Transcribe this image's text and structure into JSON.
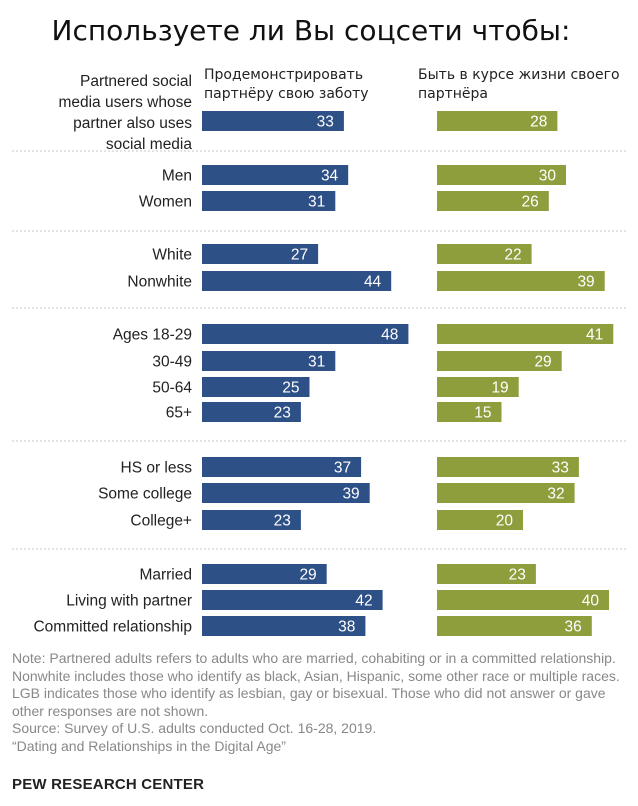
{
  "title": "Используете ли Вы соцсети чтобы:",
  "chart_data": {
    "type": "bar",
    "orientation": "horizontal",
    "series": [
      {
        "name": "Продемонстрировать партнёру свою заботу",
        "color": "#2d5086",
        "values": [
          33,
          34,
          31,
          27,
          44,
          48,
          31,
          25,
          23,
          37,
          39,
          23,
          29,
          42,
          38
        ]
      },
      {
        "name": "Быть в курсе жизни своего партнёра",
        "color": "#8f9e3d",
        "values": [
          28,
          30,
          26,
          22,
          39,
          41,
          29,
          19,
          15,
          33,
          32,
          20,
          23,
          40,
          36
        ]
      }
    ],
    "groups": [
      {
        "categories": [
          "Partnered social media users whose partner also uses social media"
        ]
      },
      {
        "categories": [
          "Men",
          "Women"
        ]
      },
      {
        "categories": [
          "White",
          "Nonwhite"
        ]
      },
      {
        "categories": [
          "Ages 18-29",
          "30-49",
          "50-64",
          "65+"
        ]
      },
      {
        "categories": [
          "HS or less",
          "Some college",
          "College+"
        ]
      },
      {
        "categories": [
          "Married",
          "Living with partner",
          "Committed relationship"
        ]
      }
    ],
    "data_labels": true,
    "grid": false,
    "legend": "top"
  },
  "notes": {
    "note": "Note: Partnered adults refers to adults who are married, cohabiting or in a committed relationship. Nonwhite includes those who identify as black, Asian, Hispanic, some other race or multiple races. LGB indicates those who identify as lesbian, gay or bisexual. Those who did not answer or gave other responses are not shown.",
    "source": "Source: Survey of U.S. adults conducted Oct. 16-28, 2019.",
    "report": "“Dating and Relationships in the Digital Age”"
  },
  "brand": "PEW RESEARCH CENTER"
}
